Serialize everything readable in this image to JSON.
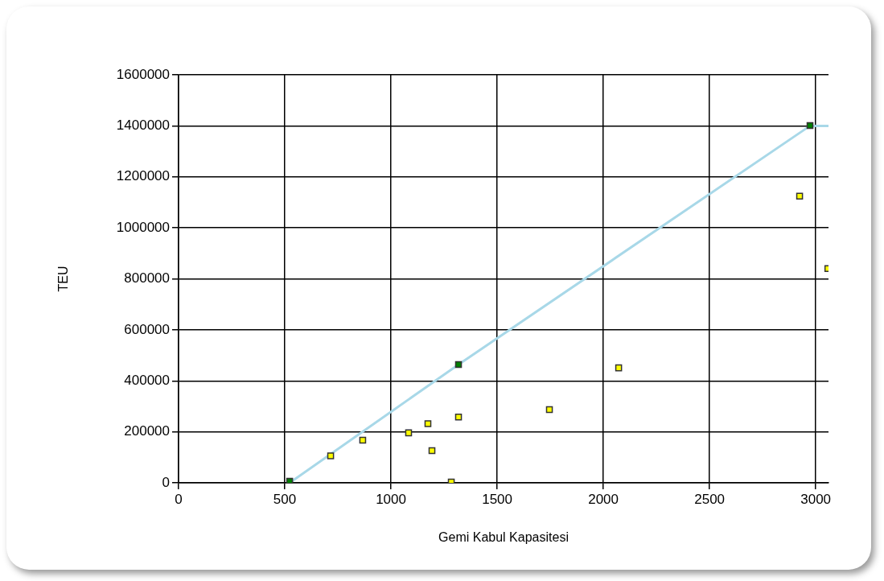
{
  "chart_data": {
    "type": "scatter",
    "xlabel": "Gemi Kabul Kapasitesi",
    "ylabel": "TEU",
    "xlim": [
      0,
      3060
    ],
    "xticks": [
      0,
      500,
      1000,
      1500,
      2000,
      2500,
      3000
    ],
    "ylim": [
      0,
      1600000
    ],
    "yticks": [
      0,
      200000,
      400000,
      600000,
      800000,
      1000000,
      1200000,
      1400000,
      1600000
    ],
    "grid": true,
    "legend": false,
    "marker": "square",
    "series": [
      {
        "type": "line",
        "color": "#a8d8e8",
        "marker": "none",
        "x": [
          523,
          1318,
          2973,
          3060
        ],
        "values": [
          0,
          464000,
          1400000,
          1400000
        ]
      },
      {
        "color": "#ffff00",
        "x": [
          716,
          867,
          1083,
          1174,
          1193,
          1318,
          1284,
          1746,
          2072,
          2924,
          3057
        ],
        "values": [
          106000,
          167000,
          196000,
          232000,
          126000,
          258000,
          3000,
          287000,
          451000,
          1124000,
          840000
        ]
      },
      {
        "color": "#008000",
        "x": [
          523,
          1318,
          2973
        ],
        "values": [
          6000,
          464000,
          1401000
        ]
      }
    ]
  }
}
